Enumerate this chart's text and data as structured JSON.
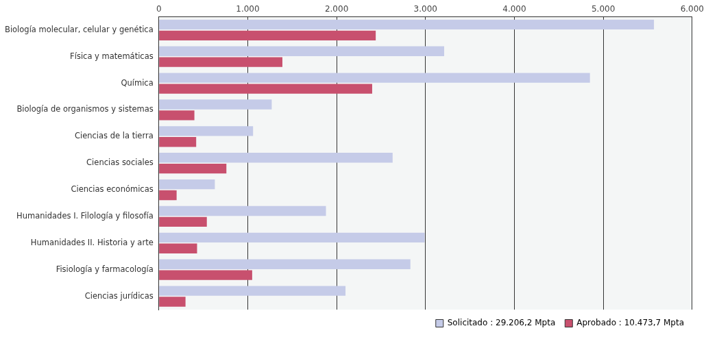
{
  "chart_data": {
    "type": "bar",
    "orientation": "horizontal",
    "categories": [
      "Biología molecular, celular y genética",
      "Física y matemáticas",
      "Química",
      "Biología de organismos y sistemas",
      "Ciencias de la tierra",
      "Ciencias sociales",
      "Ciencias económicas",
      "Humanidades I. Filología y filosofía",
      "Humanidades II. Historia y arte",
      "Fisiología y farmacología",
      "Ciencias jurídicas"
    ],
    "series": [
      {
        "name": "Solicitado : 29.206,2 Mpta",
        "color": "#c5cbe8",
        "values": [
          5570,
          3210,
          4850,
          1270,
          1060,
          2630,
          630,
          1880,
          2990,
          2830,
          2100
        ]
      },
      {
        "name": "Aprobado : 10.473,7 Mpta",
        "color": "#c8506e",
        "values": [
          2440,
          1390,
          2400,
          400,
          420,
          760,
          200,
          540,
          430,
          1050,
          300
        ]
      }
    ],
    "xlim": [
      0,
      6000
    ],
    "xticks": [
      0,
      {
        "value": 1000,
        "label": "1.000"
      },
      {
        "value": 2000,
        "label": "2.000"
      },
      {
        "value": 3000,
        "label": "3.000"
      },
      {
        "value": 4000,
        "label": "4.000"
      },
      {
        "value": 5000,
        "label": "5.000"
      },
      {
        "value": 6000,
        "label": "6.000"
      }
    ],
    "grid": "x",
    "legend": "bottom right"
  }
}
